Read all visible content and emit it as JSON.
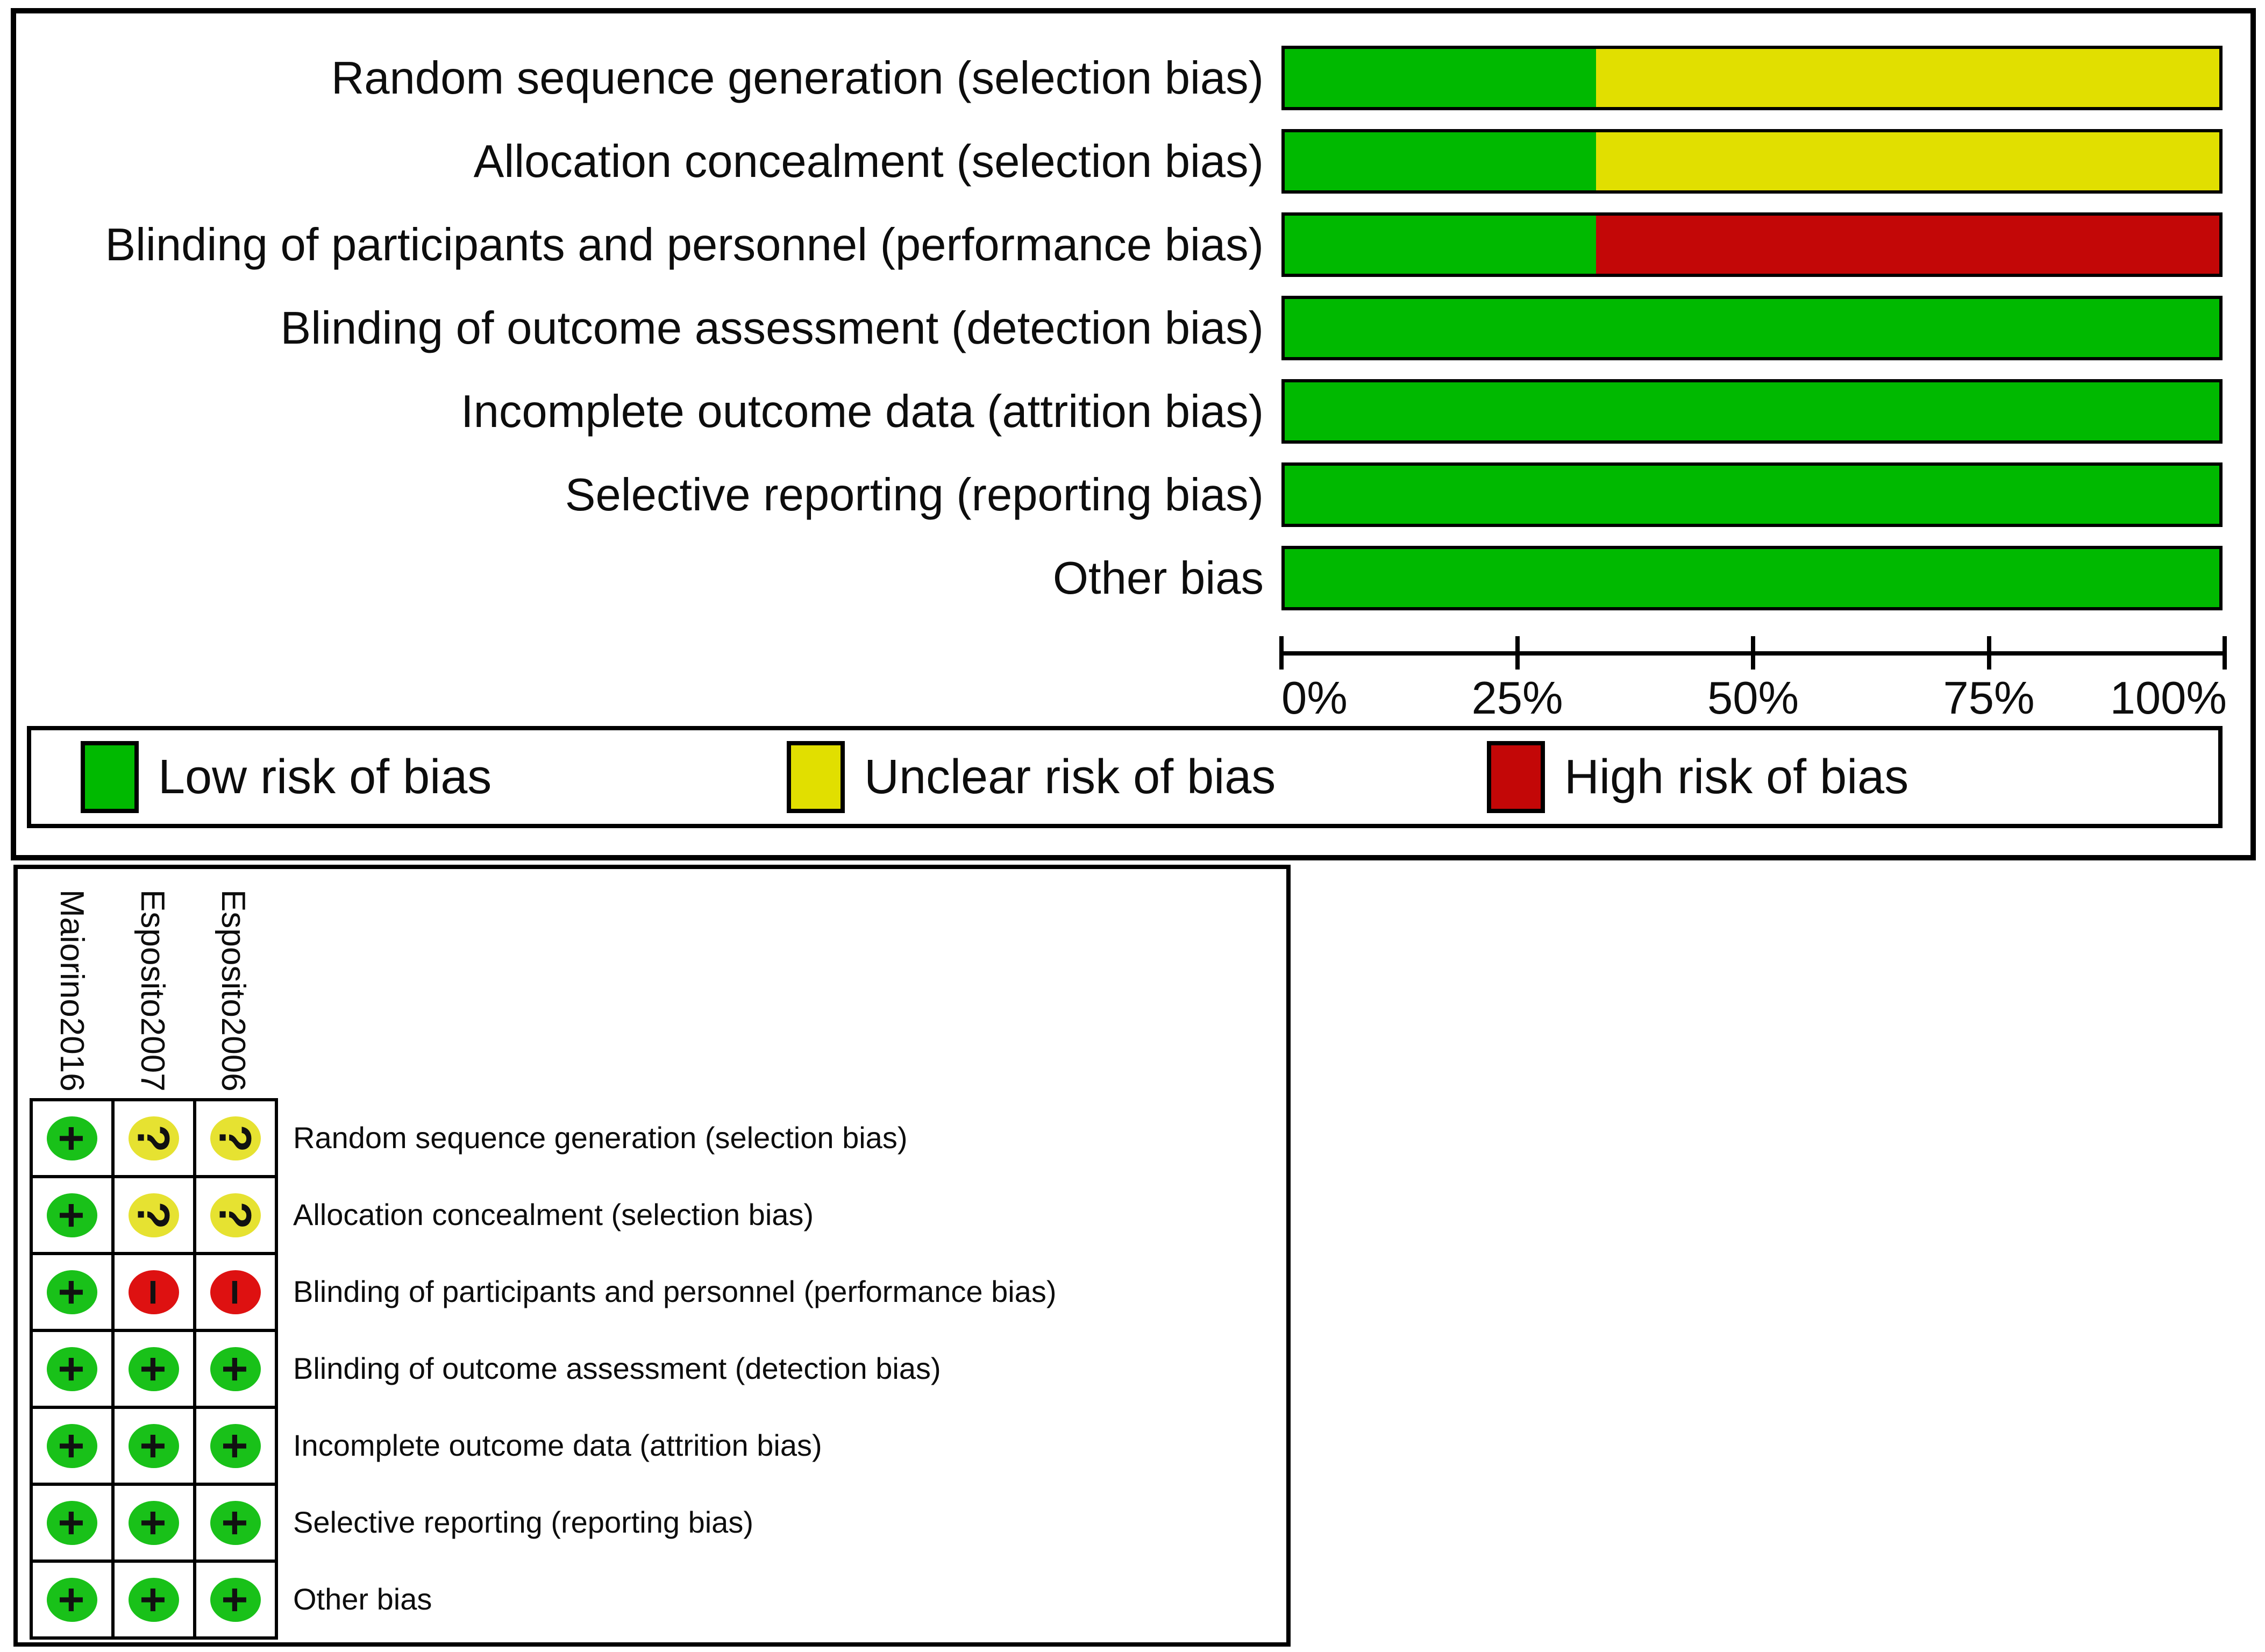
{
  "chart_data": [
    {
      "type": "bar",
      "orientation": "horizontal",
      "stacked": true,
      "title": "",
      "categories": [
        "Random sequence generation (selection bias)",
        "Allocation concealment (selection bias)",
        "Blinding of participants and personnel (performance bias)",
        "Blinding of outcome assessment (detection bias)",
        "Incomplete outcome data (attrition bias)",
        "Selective reporting (reporting bias)",
        "Other bias"
      ],
      "series": [
        {
          "name": "Low risk of bias",
          "color": "#00b900",
          "values": [
            33.3,
            33.3,
            33.3,
            100,
            100,
            100,
            100
          ]
        },
        {
          "name": "Unclear risk of bias",
          "color": "#e1df00",
          "values": [
            66.7,
            66.7,
            0,
            0,
            0,
            0,
            0
          ]
        },
        {
          "name": "High risk of bias",
          "color": "#c30707",
          "values": [
            0,
            0,
            66.7,
            0,
            0,
            0,
            0
          ]
        }
      ],
      "xlim": [
        0,
        100
      ],
      "x_tick_labels": [
        "0%",
        "25%",
        "50%",
        "75%",
        "100%"
      ],
      "grid": false,
      "legend_position": "bottom"
    },
    {
      "type": "table",
      "columns": [
        "Maiorino2016",
        "Esposito2007",
        "Esposito2006"
      ],
      "rows": [
        {
          "label": "Random sequence generation (selection bias)",
          "cells": [
            "low",
            "unclear",
            "unclear"
          ]
        },
        {
          "label": "Allocation concealment (selection bias)",
          "cells": [
            "low",
            "unclear",
            "unclear"
          ]
        },
        {
          "label": "Blinding of participants and personnel (performance bias)",
          "cells": [
            "low",
            "high",
            "high"
          ]
        },
        {
          "label": "Blinding of outcome assessment (detection bias)",
          "cells": [
            "low",
            "low",
            "low"
          ]
        },
        {
          "label": "Incomplete outcome data (attrition bias)",
          "cells": [
            "low",
            "low",
            "low"
          ]
        },
        {
          "label": "Selective reporting (reporting bias)",
          "cells": [
            "low",
            "low",
            "low"
          ]
        },
        {
          "label": "Other bias",
          "cells": [
            "low",
            "low",
            "low"
          ]
        }
      ],
      "judgement_symbols": {
        "low": "+",
        "unclear": "?",
        "high": "−"
      },
      "judgement_colors": {
        "low": "#19c119",
        "unclear": "#e6e231",
        "high": "#de1111"
      }
    }
  ]
}
